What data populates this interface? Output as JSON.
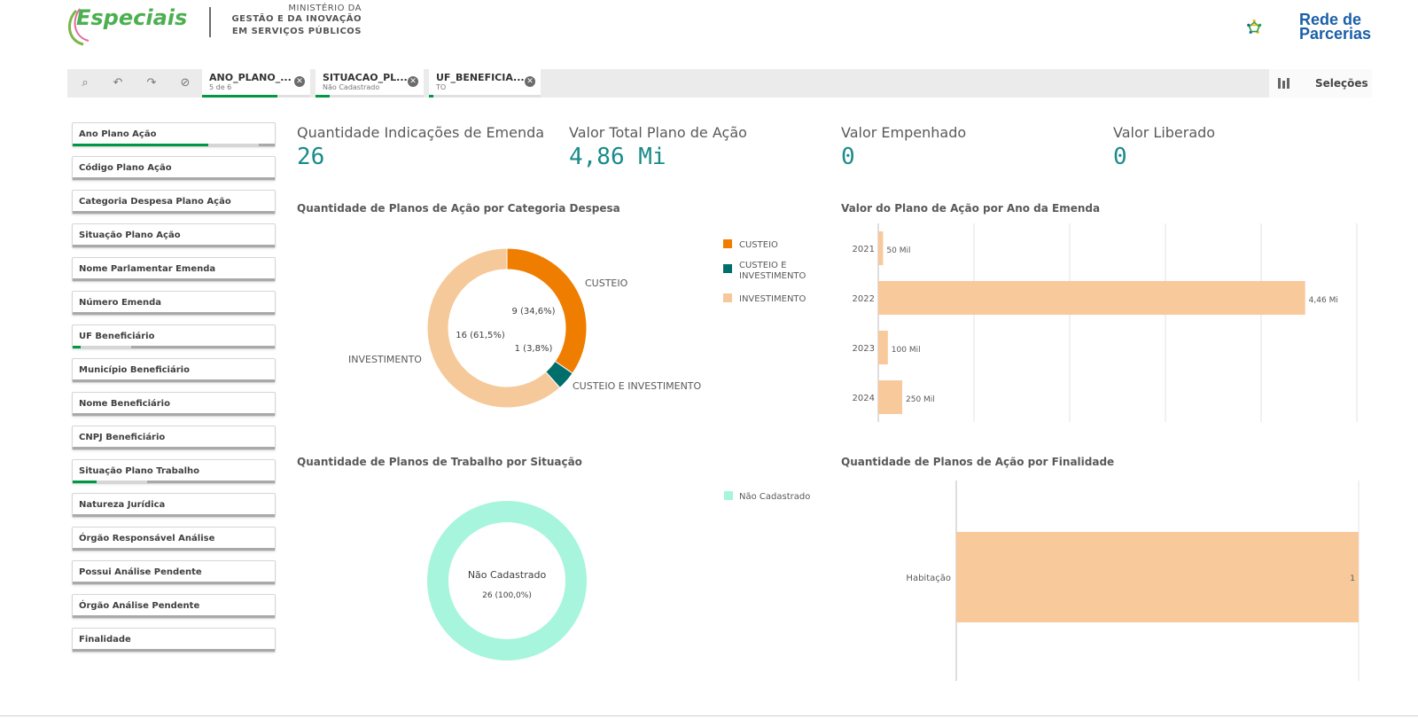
{
  "header": {
    "logo_text": "Especiais",
    "ministry_line1": "MINISTÉRIO DA",
    "ministry_line2": "GESTÃO E DA INOVAÇÃO",
    "ministry_line3": "EM SERVIÇOS PÚBLICOS",
    "partner_line1": "Rede de",
    "partner_line2": "Parcerias"
  },
  "toolbar": {
    "chips": [
      {
        "title": "ANO_PLANO_...",
        "subtitle": "5 de 6"
      },
      {
        "title": "SITUACAO_PL...",
        "subtitle": "Não Cadastrado"
      },
      {
        "title": "UF_BENEFICIA...",
        "subtitle": "TO"
      }
    ],
    "selections_label": "Seleções"
  },
  "filters": [
    {
      "label": "Ano Plano Ação",
      "selected_fraction": 0.67
    },
    {
      "label": "Código Plano Ação",
      "selected_fraction": 0
    },
    {
      "label": "Categoria Despesa Plano Ação",
      "selected_fraction": 0
    },
    {
      "label": "Situação Plano Ação",
      "selected_fraction": 0
    },
    {
      "label": "Nome Parlamentar Emenda",
      "selected_fraction": 0
    },
    {
      "label": "Número Emenda",
      "selected_fraction": 0
    },
    {
      "label": "UF Beneficiário",
      "selected_fraction": 0.04
    },
    {
      "label": "Município Beneficiário",
      "selected_fraction": 0
    },
    {
      "label": "Nome Beneficiário",
      "selected_fraction": 0
    },
    {
      "label": "CNPJ Beneficiário",
      "selected_fraction": 0
    },
    {
      "label": "Situação Plano Trabalho",
      "selected_fraction": 0.12
    },
    {
      "label": "Natureza Jurídica",
      "selected_fraction": 0
    },
    {
      "label": "Órgão Responsável Análise",
      "selected_fraction": 0
    },
    {
      "label": "Possui Análise Pendente",
      "selected_fraction": 0
    },
    {
      "label": "Órgão Análise Pendente",
      "selected_fraction": 0
    },
    {
      "label": "Finalidade",
      "selected_fraction": 0
    }
  ],
  "kpis": [
    {
      "label": "Quantidade Indicações de Emenda",
      "value": "26"
    },
    {
      "label": "Valor Total Plano de Ação",
      "value": "4,86 Mi"
    },
    {
      "label": "Valor Empenhado",
      "value": "0"
    },
    {
      "label": "Valor Liberado",
      "value": "0"
    }
  ],
  "colors": {
    "custeio": "#ef7d00",
    "custeio_investimento": "#006e6b",
    "investimento": "#f5c99a",
    "nao_cadastrado": "#a6f5dc",
    "bar": "#f7c99b",
    "accent_green": "#009845",
    "kpi_value": "#1a8a8a"
  },
  "chart_data": [
    {
      "type": "pie",
      "title": "Quantidade de Planos de Ação por Categoria Despesa",
      "categories": [
        "CUSTEIO",
        "CUSTEIO E INVESTIMENTO",
        "INVESTIMENTO"
      ],
      "legend_labels": [
        "CUSTEIO",
        "CUSTEIO E INVESTIMENTO",
        "INVESTIMENTO"
      ],
      "values": [
        9,
        1,
        16
      ],
      "data_labels": [
        "9 (34,6%)",
        "1 (3,8%)",
        "16 (61,5%)"
      ],
      "legend_position": "right"
    },
    {
      "type": "bar",
      "orientation": "horizontal",
      "title": "Valor do Plano de Ação por Ano da Emenda",
      "categories": [
        "2021",
        "2022",
        "2023",
        "2024"
      ],
      "values": [
        0.05,
        4.46,
        0.1,
        0.25
      ],
      "data_labels": [
        "50 Mil",
        "4,46 Mi",
        "100 Mil",
        "250 Mil"
      ],
      "xlim": [
        0,
        5
      ]
    },
    {
      "type": "pie",
      "title": "Quantidade de Planos de Trabalho por Situação",
      "categories": [
        "Não Cadastrado"
      ],
      "values": [
        26
      ],
      "center_label": "Não Cadastrado",
      "center_value": "26 (100,0%)",
      "legend_labels": [
        "Não Cadastrado"
      ],
      "legend_position": "right"
    },
    {
      "type": "bar",
      "orientation": "horizontal",
      "title": "Quantidade de Planos de Ação por Finalidade",
      "categories": [
        "Habitação"
      ],
      "values": [
        1
      ],
      "data_labels": [
        "1"
      ],
      "xlim": [
        0,
        1
      ]
    }
  ]
}
